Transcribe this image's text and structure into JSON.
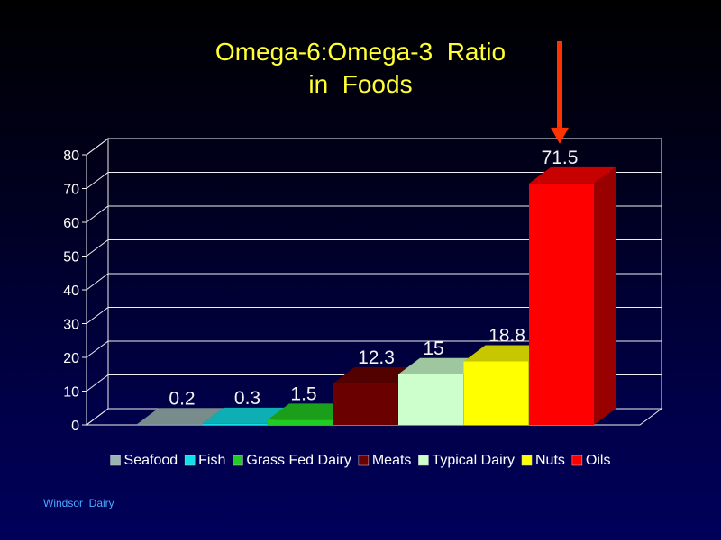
{
  "slide": {
    "title_line1": "Omega-6:Omega-3  Ratio",
    "title_line2": "in  Foods",
    "footer": "Windsor  Dairy"
  },
  "chart_data": {
    "type": "bar",
    "categories": [
      "Seafood",
      "Fish",
      "Grass Fed Dairy",
      "Meats",
      "Typical Dairy",
      "Nuts",
      "Oils"
    ],
    "values": [
      0.2,
      0.3,
      1.5,
      12.3,
      15,
      18.8,
      71.5
    ],
    "data_labels": [
      "0.2",
      "0.3",
      "1.5",
      "12.3",
      "15",
      "18.8",
      "71.5"
    ],
    "colors": [
      "#9ab4b4",
      "#11e0e8",
      "#22cc22",
      "#6a0000",
      "#ccffcc",
      "#ffff00",
      "#ff0000"
    ],
    "ylim": [
      0,
      80
    ],
    "yticks": [
      "0",
      "10",
      "20",
      "30",
      "40",
      "50",
      "60",
      "70",
      "80"
    ],
    "grid": true,
    "legend": "bottom",
    "three_d": true,
    "annotation": {
      "type": "arrow",
      "target": "Oils",
      "color": "#ff3300"
    }
  }
}
